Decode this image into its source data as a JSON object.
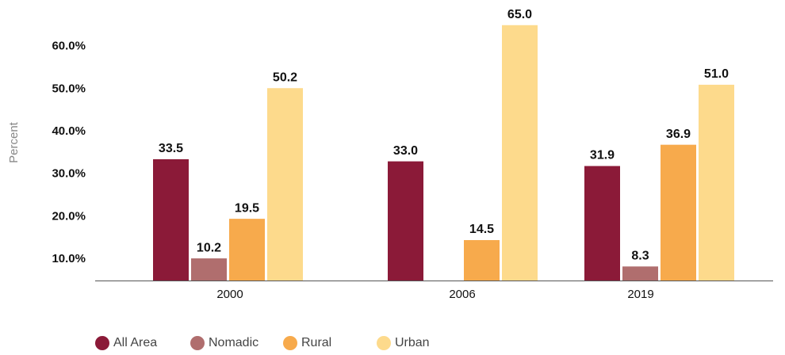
{
  "chart_data": {
    "type": "bar",
    "y_label": "Percent",
    "categories": [
      "2000",
      "2006",
      "2019"
    ],
    "series": [
      {
        "name": "All Area",
        "color": "#8b1a38",
        "values": [
          33.5,
          33.0,
          31.9
        ],
        "value_labels": [
          "33.5",
          "33.0",
          "31.9"
        ]
      },
      {
        "name": "Nomadic",
        "color": "#b06e6e",
        "values": [
          10.2,
          null,
          8.3
        ],
        "value_labels": [
          "10.2",
          null,
          "8.3"
        ]
      },
      {
        "name": "Rural",
        "color": "#f7aa4c",
        "values": [
          19.5,
          14.5,
          36.9
        ],
        "value_labels": [
          "19.5",
          "14.5",
          "36.9"
        ]
      },
      {
        "name": "Urban",
        "color": "#fdda8c",
        "values": [
          50.2,
          65.0,
          51.0
        ],
        "value_labels": [
          "50.2",
          "65.0",
          "51.0"
        ]
      }
    ],
    "ylim": [
      5,
      67
    ],
    "yticks": [
      {
        "value": 10,
        "label": "10.0%"
      },
      {
        "value": 20,
        "label": "20.0%"
      },
      {
        "value": 30,
        "label": "30.0%"
      },
      {
        "value": 40,
        "label": "40.0%"
      },
      {
        "value": 50,
        "label": "50.0%"
      },
      {
        "value": 60,
        "label": "60.0%"
      }
    ],
    "grid": false
  }
}
